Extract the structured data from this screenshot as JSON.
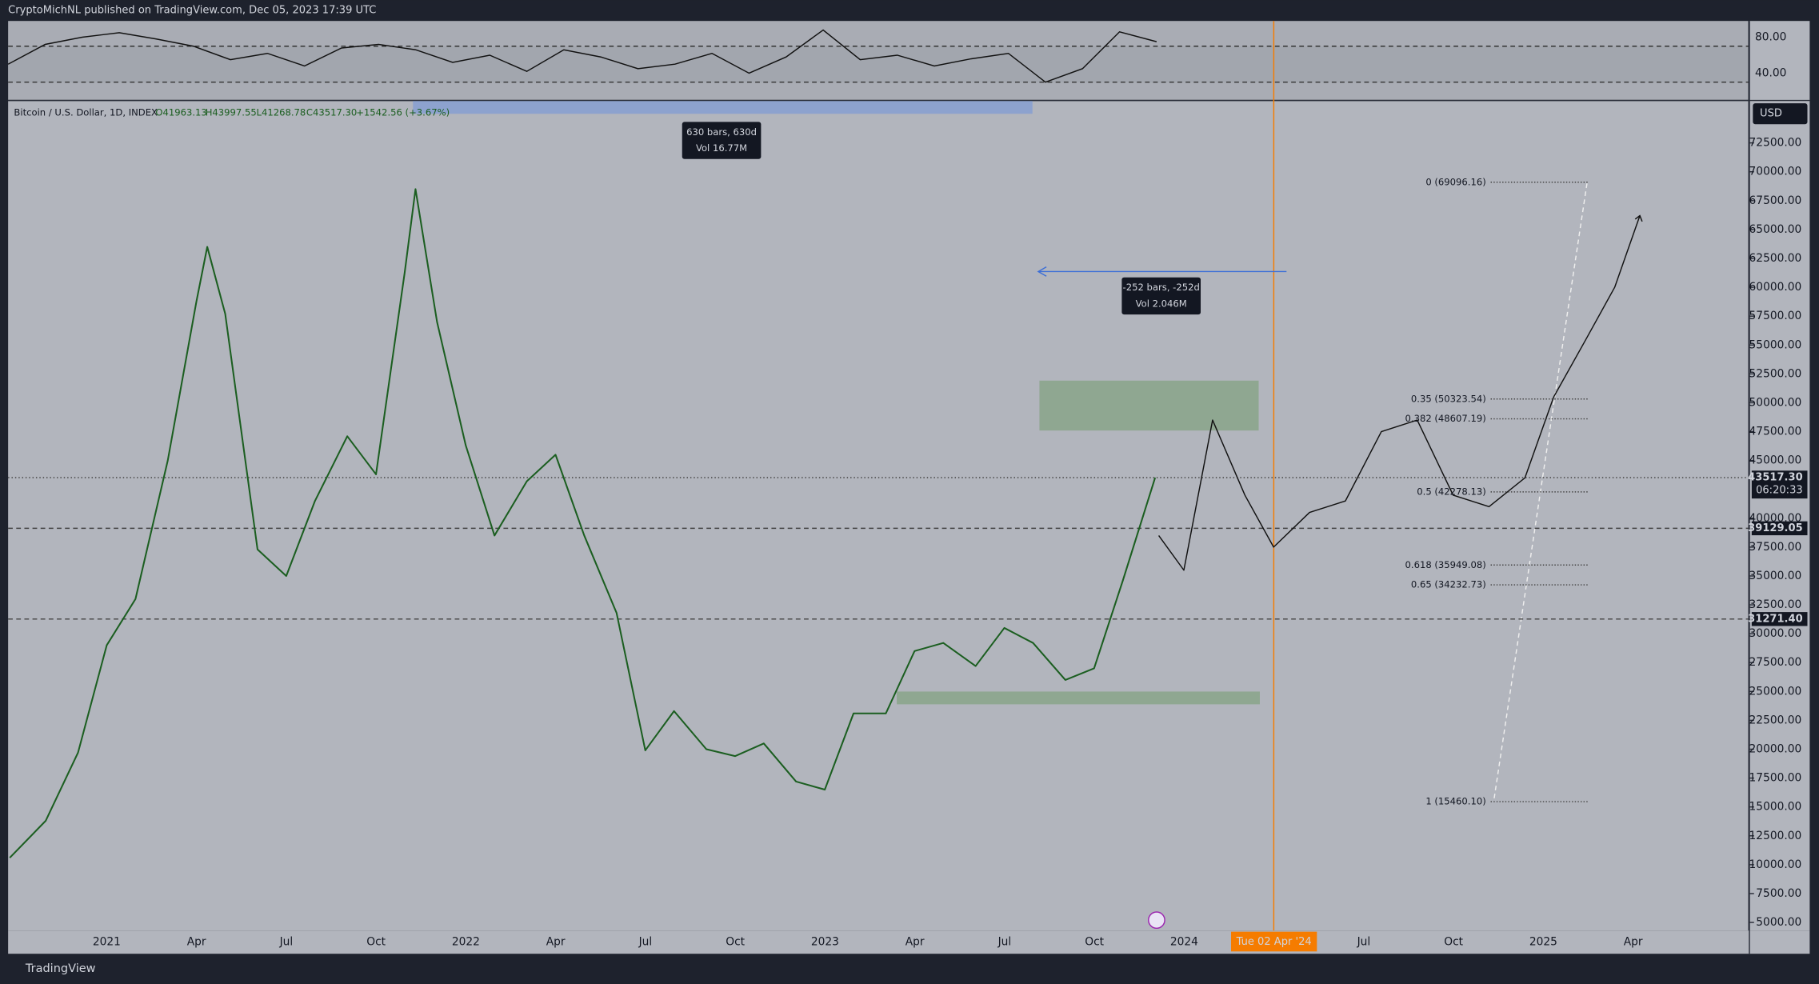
{
  "header": {
    "published": "CryptoMichNL published on TradingView.com, Dec 05, 2023 17:39 UTC"
  },
  "legend": {
    "symbol": "Bitcoin / U.S. Dollar, 1D, INDEX",
    "open": "O41963.13",
    "high": "H43997.55",
    "low": "L41268.78",
    "close": "C43517.30",
    "change": "+1542.56 (+3.67%)"
  },
  "rsi_panel": {
    "ticks": [
      {
        "value": 80,
        "label": "80.00"
      },
      {
        "value": 40,
        "label": "40.00"
      }
    ],
    "levels": [
      70,
      30
    ],
    "values": [
      50,
      72,
      80,
      85,
      78,
      70,
      55,
      62,
      48,
      68,
      72,
      66,
      52,
      60,
      42,
      66,
      58,
      45,
      50,
      62,
      40,
      58,
      88,
      55,
      60,
      48,
      56,
      62,
      30,
      45,
      86,
      75
    ]
  },
  "price_axis": {
    "currency": "USD",
    "ticks": [
      {
        "value": 72500,
        "label": "72500.00"
      },
      {
        "value": 70000,
        "label": "70000.00"
      },
      {
        "value": 67500,
        "label": "67500.00"
      },
      {
        "value": 65000,
        "label": "65000.00"
      },
      {
        "value": 62500,
        "label": "62500.00"
      },
      {
        "value": 60000,
        "label": "60000.00"
      },
      {
        "value": 57500,
        "label": "57500.00"
      },
      {
        "value": 55000,
        "label": "55000.00"
      },
      {
        "value": 52500,
        "label": "52500.00"
      },
      {
        "value": 50000,
        "label": "50000.00"
      },
      {
        "value": 47500,
        "label": "47500.00"
      },
      {
        "value": 45000,
        "label": "45000.00"
      },
      {
        "value": 40000,
        "label": "40000.00"
      },
      {
        "value": 37500,
        "label": "37500.00"
      },
      {
        "value": 35000,
        "label": "35000.00"
      },
      {
        "value": 32500,
        "label": "32500.00"
      },
      {
        "value": 30000,
        "label": "30000.00"
      },
      {
        "value": 27500,
        "label": "27500.00"
      },
      {
        "value": 25000,
        "label": "25000.00"
      },
      {
        "value": 22500,
        "label": "22500.00"
      },
      {
        "value": 20000,
        "label": "20000.00"
      },
      {
        "value": 17500,
        "label": "17500.00"
      },
      {
        "value": 15000,
        "label": "15000.00"
      },
      {
        "value": 12500,
        "label": "12500.00"
      },
      {
        "value": 10000,
        "label": "10000.00"
      },
      {
        "value": 7500,
        "label": "7500.00"
      },
      {
        "value": 5000,
        "label": "5000.00"
      }
    ]
  },
  "badges": [
    {
      "value": 43517.3,
      "label": "43517.30",
      "countdown": "06:20:33"
    },
    {
      "value": 39129.05,
      "label": "39129.05"
    },
    {
      "value": 31271.4,
      "label": "31271.40"
    }
  ],
  "time_axis": {
    "labels": [
      "2021",
      "Apr",
      "Jul",
      "Oct",
      "2022",
      "Apr",
      "Jul",
      "Oct",
      "2023",
      "Apr",
      "Jul",
      "Oct",
      "2024",
      "Tue 02 Apr '24",
      "Jul",
      "Oct",
      "2025",
      "Apr"
    ]
  },
  "price": {
    "x": [
      2020.73,
      2020.83,
      2020.92,
      2021.0,
      2021.08,
      2021.17,
      2021.25,
      2021.28,
      2021.33,
      2021.42,
      2021.5,
      2021.58,
      2021.67,
      2021.75,
      2021.83,
      2021.86,
      2021.92,
      2022.0,
      2022.08,
      2022.17,
      2022.25,
      2022.33,
      2022.42,
      2022.5,
      2022.58,
      2022.67,
      2022.75,
      2022.83,
      2022.92,
      2023.0,
      2023.08,
      2023.17,
      2023.25,
      2023.33,
      2023.42,
      2023.5,
      2023.58,
      2023.67,
      2023.75,
      2023.83,
      2023.92
    ],
    "values": [
      10600,
      13800,
      19700,
      29000,
      33000,
      45000,
      58800,
      63500,
      57700,
      37300,
      35000,
      41500,
      47100,
      43800,
      61300,
      68500,
      57000,
      46300,
      38500,
      43200,
      45500,
      38500,
      31800,
      19900,
      23300,
      20000,
      19400,
      20500,
      17200,
      16500,
      23100,
      23100,
      28500,
      29200,
      27200,
      30500,
      29200,
      26000,
      27000,
      34600,
      43517.3
    ]
  },
  "projection": {
    "x": [
      2023.93,
      2024.0,
      2024.08,
      2024.17,
      2024.25,
      2024.35,
      2024.45,
      2024.55,
      2024.65,
      2024.75,
      2024.85,
      2024.95,
      2025.03,
      2025.12,
      2025.2,
      2025.27
    ],
    "values": [
      38500,
      35500,
      48500,
      42000,
      37500,
      40500,
      41500,
      47500,
      48500,
      42000,
      41000,
      43500,
      50500,
      55500,
      60000,
      66200
    ]
  },
  "fib": [
    {
      "label": "0 (69096.16)",
      "value": 69096.16
    },
    {
      "label": "0.35 (50323.54)",
      "value": 50323.54
    },
    {
      "label": "0.382 (48607.19)",
      "value": 48607.19
    },
    {
      "label": "0.5 (42278.13)",
      "value": 42278.13
    },
    {
      "label": "0.618 (35949.08)",
      "value": 35949.08
    },
    {
      "label": "0.65 (34232.73)",
      "value": 34232.73
    },
    {
      "label": "1 (15460.10)",
      "value": 15460.1
    }
  ],
  "measures": [
    {
      "bars": "630 bars, 630d",
      "vol": "Vol 16.77M"
    },
    {
      "bars": "-252 bars, -252d",
      "vol": "Vol 2.046M"
    }
  ],
  "footer": {
    "brand": "TradingView"
  }
}
